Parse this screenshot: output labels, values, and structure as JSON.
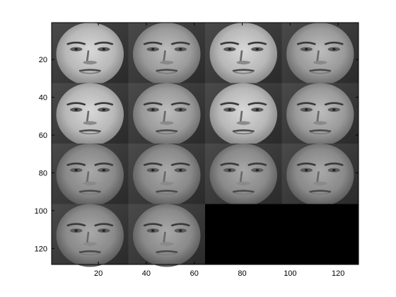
{
  "figure": {
    "x_axis": {
      "range": [
        0.5,
        128.5
      ],
      "ticks": [
        20,
        40,
        60,
        80,
        100,
        120
      ],
      "tick_labels": [
        "20",
        "40",
        "60",
        "80",
        "100",
        "120"
      ]
    },
    "y_axis": {
      "range": [
        0.5,
        128.5
      ],
      "direction": "reversed",
      "ticks": [
        20,
        40,
        60,
        80,
        100,
        120
      ],
      "tick_labels": [
        "20",
        "40",
        "60",
        "80",
        "100",
        "120"
      ]
    },
    "montage": {
      "grid": {
        "rows": 4,
        "cols": 4
      },
      "tile_count": 14,
      "tile_content": "grayscale-face-photo",
      "empty_fill": "#000000"
    }
  }
}
